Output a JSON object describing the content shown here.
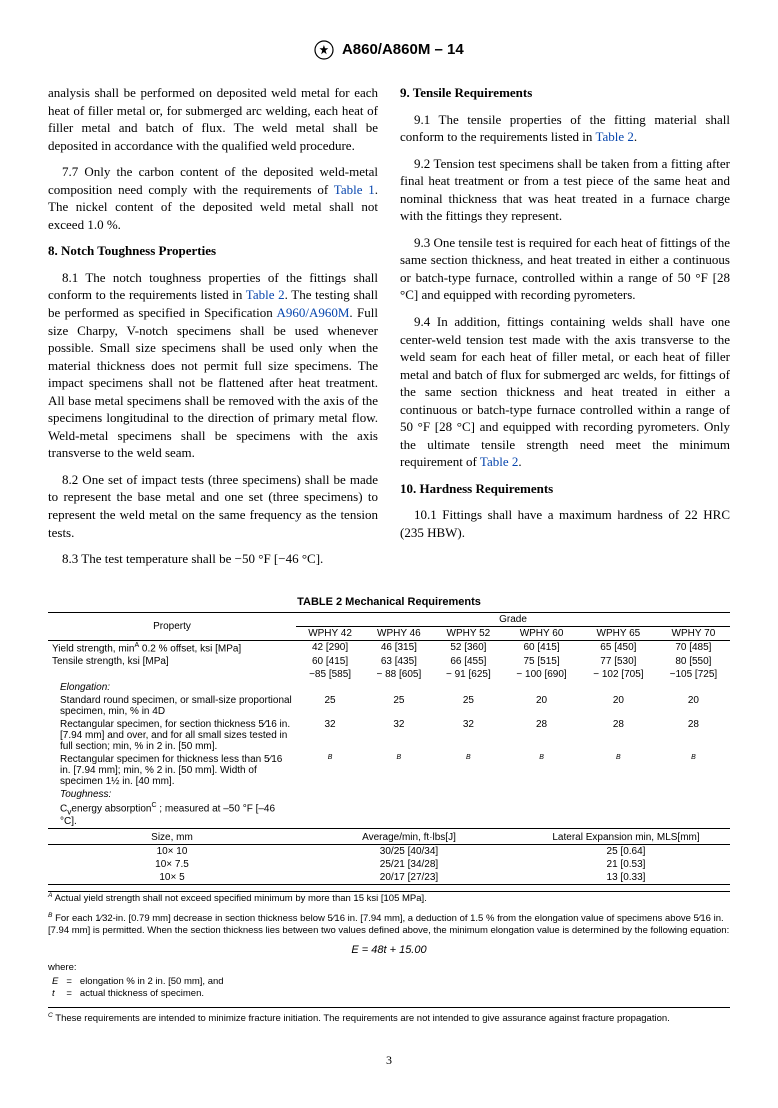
{
  "header": {
    "designation": "A860/A860M – 14"
  },
  "col_left": {
    "p_cont": "analysis shall be performed on deposited weld metal for each heat of filler metal or, for submerged arc welding, each heat of filler metal and batch of flux. The weld metal shall be deposited in accordance with the qualified weld procedure.",
    "p77a": "7.7 Only the carbon content of the deposited weld-metal composition need comply with the requirements of ",
    "p77b": ". The nickel content of the deposited weld metal shall not exceed 1.0 %.",
    "table1_link": "Table 1",
    "h8": "8. Notch Toughness Properties",
    "p81a": "8.1 The notch toughness properties of the fittings shall conform to the requirements listed in ",
    "table2_link": "Table 2",
    "p81b": ". The testing shall be performed as specified in Specification ",
    "a960_link": "A960/A960M",
    "p81c": ". Full size Charpy, V-notch specimens shall be used whenever possible. Small size specimens shall be used only when the material thickness does not permit full size specimens. The impact specimens shall not be flattened after heat treatment. All base metal specimens shall be removed with the axis of the specimens longitudinal to the direction of primary metal flow. Weld-metal specimens shall be specimens with the axis transverse to the weld seam.",
    "p82": "8.2 One set of impact tests (three specimens) shall be made to represent the base metal and one set (three specimens) to represent the weld metal on the same frequency as the tension tests.",
    "p83": "8.3 The test temperature shall be −50 °F [−46 °C]."
  },
  "col_right": {
    "h9": "9. Tensile Requirements",
    "p91a": "9.1 The tensile properties of the fitting material shall conform to the requirements listed in ",
    "p91b": ".",
    "p92": "9.2 Tension test specimens shall be taken from a fitting after final heat treatment or from a test piece of the same heat and nominal thickness that was heat treated in a furnace charge with the fittings they represent.",
    "p93": "9.3 One tensile test is required for each heat of fittings of the same section thickness, and heat treated in either a continuous or batch-type furnace, controlled within a range of 50 °F [28 °C] and equipped with recording pyrometers.",
    "p94a": "9.4 In addition, fittings containing welds shall have one center-weld tension test made with the axis transverse to the weld seam for each heat of filler metal, or each heat of filler metal and batch of flux for submerged arc welds, for fittings of the same section thickness and heat treated in either a continuous or batch-type furnace controlled within a range of 50 °F [28 °C] and equipped with recording pyrometers. Only the ultimate tensile strength need meet the minimum requirement of ",
    "p94b": ".",
    "h10": "10. Hardness Requirements",
    "p101": "10.1 Fittings shall have a maximum hardness of 22 HRC (235 HBW)."
  },
  "table2": {
    "title": "TABLE 2 Mechanical Requirements",
    "h_property": "Property",
    "h_grade": "Grade",
    "grades": [
      "WPHY 42",
      "WPHY 46",
      "WPHY 52",
      "WPHY 60",
      "WPHY 65",
      "WPHY 70"
    ],
    "rows_props": [
      {
        "label": "Yield strength, min<sup>A</sup> 0.2 % offset, ksi [MPa]",
        "vals": [
          "42 [290]",
          "46 [315]",
          "52 [360]",
          "60 [415]",
          "65 [450]",
          "70 [485]"
        ]
      },
      {
        "label": "Tensile strength, ksi [MPa]",
        "vals": [
          "60 [415]",
          "63 [435]",
          "66 [455]",
          "75 [515]",
          "77 [530]",
          "80 [550]"
        ]
      },
      {
        "label": "",
        "vals": [
          "−85 [585]",
          "− 88 [605]",
          "− 91 [625]",
          "− 100 [690]",
          "− 102 [705]",
          "−105 [725]"
        ]
      }
    ],
    "elong_header": "Elongation:",
    "elong_rows": [
      {
        "label": "Standard round specimen, or small-size proportional specimen, min, % in 4D",
        "vals": [
          "25",
          "25",
          "25",
          "20",
          "20",
          "20"
        ]
      },
      {
        "label": "Rectangular specimen, for section thickness 5⁄16 in. [7.94 mm] and over, and for all small sizes tested in full section; min, % in 2 in. [50 mm].",
        "vals": [
          "32",
          "32",
          "32",
          "28",
          "28",
          "28"
        ]
      },
      {
        "label": "Rectangular specimen for thickness less than 5⁄16 in. [7.94 mm]; min, % 2 in. [50 mm]. Width of specimen 1½ in. [40 mm].",
        "vals": [
          "B",
          "B",
          "B",
          "B",
          "B",
          "B"
        ],
        "italic": true
      }
    ],
    "tough_header": "Toughness:",
    "tough_sub": "C<sub>v</sub>energy absorption<sup>C</sup> ; measured at –50 °F [–46 °C].",
    "h_size": "Size, mm",
    "h_avg": "Average/min, ft·lbs[J]",
    "h_lat": "Lateral Expansion min, MLS[mm]",
    "sizes": [
      {
        "s": "10× 10",
        "avg": "30/25 [40/34]",
        "lat": "25 [0.64]"
      },
      {
        "s": "10× 7.5",
        "avg": "25/21 [34/28]",
        "lat": "21 [0.53]"
      },
      {
        "s": "10× 5",
        "avg": "20/17 [27/23]",
        "lat": "13 [0.33]"
      }
    ]
  },
  "footnotes": {
    "A": "Actual yield strength shall not exceed specified minimum by more than 15 ksi [105 MPa].",
    "B": "For each 1⁄32-in. [0.79 mm] decrease in section thickness below 5⁄16 in. [7.94 mm], a deduction of 1.5 % from the elongation value of specimens above 5⁄16  in. [7.94 mm] is permitted. When the section thickness lies between two values defined above, the minimum elongation value is determined by the following equation:",
    "eq": "E = 48t + 15.00",
    "where": "where:",
    "E_def": "elongation % in 2 in. [50 mm], and",
    "t_def": "actual thickness of specimen.",
    "C": "These requirements are intended to minimize fracture initiation. The requirements are not intended to give assurance against fracture propagation."
  },
  "page": "3"
}
